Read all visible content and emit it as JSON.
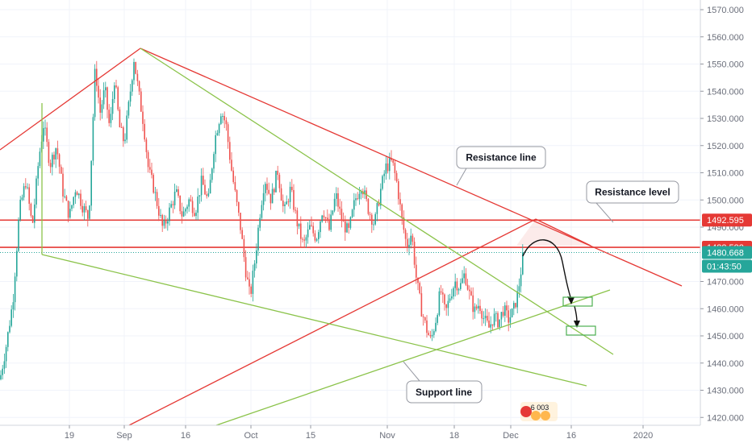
{
  "chart_data": {
    "type": "candlestick",
    "symbol_hint": "gold-like price series",
    "x_tick_labels": [
      "19",
      "Sep",
      "16",
      "Oct",
      "15",
      "Nov",
      "18",
      "Dec",
      "16",
      "2020"
    ],
    "y_tick_labels": [
      "1570.000",
      "1560.000",
      "1550.000",
      "1540.000",
      "1530.000",
      "1520.000",
      "1510.000",
      "1500.000",
      "1490.000",
      "1470.000",
      "1460.000",
      "1450.000",
      "1440.000",
      "1430.000",
      "1420.000"
    ],
    "ylim": [
      1417,
      1573
    ],
    "price_tags": [
      {
        "label": "1492.595",
        "value": 1492.595,
        "color": "#e53935"
      },
      {
        "label": "1482.582",
        "value": 1482.582,
        "color": "#e53935"
      },
      {
        "label": "1480.668",
        "value": 1480.668,
        "color": "#26a69a"
      },
      {
        "label": "01:43:50",
        "value": 1476.2,
        "color": "#26a69a"
      }
    ],
    "horizontal_levels": [
      1492.595,
      1482.582
    ],
    "current_price": 1480.668,
    "annotations": {
      "resistance_line": "Resistance line",
      "resistance_level": "Resistance level",
      "support_line": "Support line"
    },
    "price_path": [
      [
        0,
        1434
      ],
      [
        8,
        1447
      ],
      [
        16,
        1463
      ],
      [
        24,
        1496
      ],
      [
        32,
        1507
      ],
      [
        40,
        1490
      ],
      [
        48,
        1515
      ],
      [
        54,
        1528
      ],
      [
        62,
        1513
      ],
      [
        70,
        1520
      ],
      [
        78,
        1503
      ],
      [
        86,
        1494
      ],
      [
        94,
        1505
      ],
      [
        102,
        1498
      ],
      [
        110,
        1493
      ],
      [
        118,
        1549
      ],
      [
        124,
        1532
      ],
      [
        130,
        1541
      ],
      [
        136,
        1526
      ],
      [
        142,
        1545
      ],
      [
        148,
        1527
      ],
      [
        154,
        1521
      ],
      [
        160,
        1536
      ],
      [
        166,
        1552
      ],
      [
        172,
        1539
      ],
      [
        178,
        1528
      ],
      [
        184,
        1511
      ],
      [
        190,
        1505
      ],
      [
        196,
        1497
      ],
      [
        202,
        1489
      ],
      [
        210,
        1496
      ],
      [
        218,
        1503
      ],
      [
        226,
        1494
      ],
      [
        234,
        1500
      ],
      [
        242,
        1496
      ],
      [
        250,
        1507
      ],
      [
        258,
        1499
      ],
      [
        266,
        1522
      ],
      [
        274,
        1533
      ],
      [
        280,
        1528
      ],
      [
        286,
        1513
      ],
      [
        292,
        1501
      ],
      [
        298,
        1490
      ],
      [
        304,
        1475
      ],
      [
        310,
        1464
      ],
      [
        316,
        1478
      ],
      [
        322,
        1495
      ],
      [
        328,
        1508
      ],
      [
        336,
        1500
      ],
      [
        344,
        1511
      ],
      [
        352,
        1495
      ],
      [
        360,
        1504
      ],
      [
        368,
        1492
      ],
      [
        376,
        1483
      ],
      [
        384,
        1490
      ],
      [
        392,
        1486
      ],
      [
        400,
        1497
      ],
      [
        408,
        1489
      ],
      [
        416,
        1502
      ],
      [
        424,
        1492
      ],
      [
        432,
        1488
      ],
      [
        440,
        1500
      ],
      [
        448,
        1506
      ],
      [
        456,
        1497
      ],
      [
        464,
        1491
      ],
      [
        472,
        1504
      ],
      [
        478,
        1512
      ],
      [
        486,
        1514
      ],
      [
        492,
        1506
      ],
      [
        498,
        1493
      ],
      [
        504,
        1483
      ],
      [
        510,
        1488
      ],
      [
        516,
        1471
      ],
      [
        522,
        1460
      ],
      [
        528,
        1453
      ],
      [
        534,
        1448
      ],
      [
        540,
        1456
      ],
      [
        546,
        1467
      ],
      [
        552,
        1458
      ],
      [
        558,
        1465
      ],
      [
        564,
        1470
      ],
      [
        570,
        1468
      ],
      [
        576,
        1473
      ],
      [
        582,
        1465
      ],
      [
        588,
        1459
      ],
      [
        594,
        1462
      ],
      [
        600,
        1456
      ],
      [
        606,
        1453
      ],
      [
        612,
        1457
      ],
      [
        618,
        1455
      ],
      [
        624,
        1460
      ],
      [
        630,
        1456
      ],
      [
        636,
        1459
      ],
      [
        642,
        1466
      ],
      [
        648,
        1479
      ],
      [
        652,
        1481
      ]
    ]
  },
  "watermark": {
    "value": "6 003"
  },
  "colors": {
    "up": "#26a69a",
    "down": "#ef5350",
    "red_line": "#e53935",
    "green_line": "#8bc34a",
    "grid": "#f0f3fa",
    "axis_text": "#6b6f7b"
  }
}
